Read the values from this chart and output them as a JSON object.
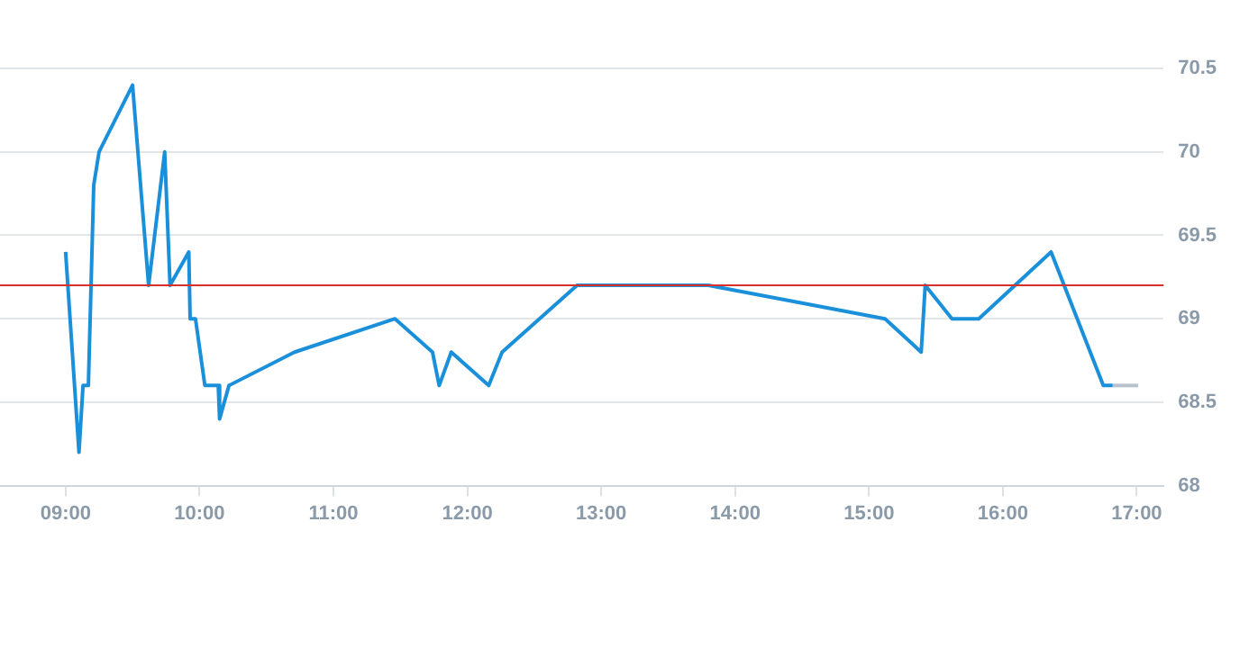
{
  "chart_data": {
    "type": "line",
    "x": [
      9.0,
      9.1,
      9.13,
      9.17,
      9.21,
      9.25,
      9.5,
      9.62,
      9.74,
      9.78,
      9.92,
      9.93,
      9.97,
      10.04,
      10.14,
      10.15,
      10.22,
      10.71,
      11.46,
      11.74,
      11.79,
      11.88,
      12.16,
      12.26,
      12.82,
      13.8,
      15.12,
      15.39,
      15.42,
      15.62,
      15.82,
      16.36,
      16.75,
      16.82
    ],
    "series": [
      {
        "color": "#1a90db",
        "values": [
          69.4,
          68.2,
          68.6,
          68.6,
          69.8,
          70.0,
          70.4,
          69.2,
          70.0,
          69.2,
          69.4,
          69.0,
          69.0,
          68.6,
          68.6,
          68.4,
          68.6,
          68.8,
          69.0,
          68.8,
          68.6,
          68.8,
          68.6,
          68.8,
          69.2,
          69.2,
          69.0,
          68.8,
          69.2,
          69.0,
          69.0,
          69.4,
          68.6,
          68.6
        ]
      },
      {
        "color": "#b8c2cc",
        "x": [
          16.82,
          17.01
        ],
        "values": [
          68.6,
          68.6
        ]
      }
    ],
    "xlim": [
      8.51,
      17.2
    ],
    "xticks": [
      {
        "value": 9,
        "label": "09:00"
      },
      {
        "value": 10,
        "label": "10:00"
      },
      {
        "value": 11,
        "label": "11:00"
      },
      {
        "value": 12,
        "label": "12:00"
      },
      {
        "value": 13,
        "label": "13:00"
      },
      {
        "value": 14,
        "label": "14:00"
      },
      {
        "value": 15,
        "label": "15:00"
      },
      {
        "value": 16,
        "label": "16:00"
      },
      {
        "value": 17,
        "label": "17:00"
      }
    ],
    "ylim": [
      68,
      70.5
    ],
    "yticks": [
      68,
      68.5,
      69,
      69.5,
      70,
      70.5
    ],
    "ref_lines": [
      {
        "axis": "y",
        "value": 69.2,
        "color": "#d9302c"
      }
    ],
    "grid": "y",
    "legend": false,
    "marker": "none",
    "line_style": "solid"
  }
}
